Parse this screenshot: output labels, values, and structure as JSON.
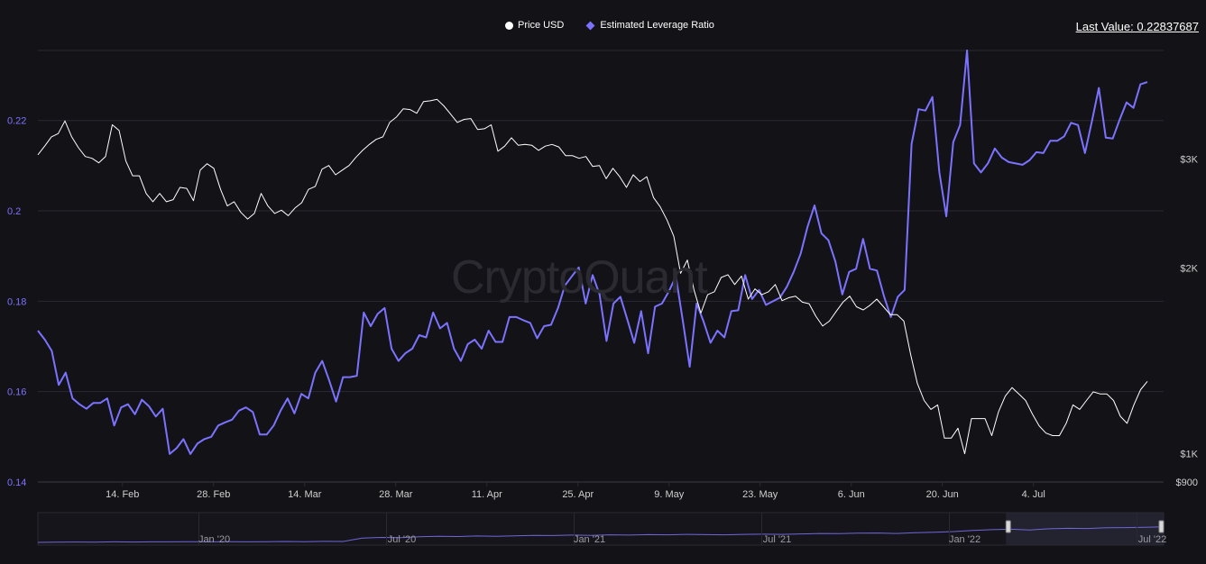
{
  "legend": {
    "price_label": "Price USD",
    "leverage_label": "Estimated Leverage Ratio"
  },
  "last_value": "Last Value: 0.22837687",
  "watermark": "CryptoQuant",
  "colors": {
    "background": "#131217",
    "grid": "#2a2932",
    "price": "#ffffff",
    "leverage": "#7b73ff",
    "left_axis_text": "#7b73ff",
    "right_axis_text": "#cfcfcf",
    "x_axis_text": "#cfcfcf"
  },
  "chart_data": {
    "type": "line",
    "x_start": "2022-02-01",
    "x_end": "2022-07-24",
    "x_tick_labels": [
      "14. Feb",
      "28. Feb",
      "14. Mar",
      "28. Mar",
      "11. Apr",
      "25. Apr",
      "9. May",
      "23. May",
      "6. Jun",
      "20. Jun",
      "4. Jul"
    ],
    "left_axis": {
      "series": "Estimated Leverage Ratio",
      "ticks": [
        0.14,
        0.16,
        0.18,
        0.2,
        0.22
      ],
      "tick_labels": [
        "0.14",
        "0.16",
        "0.18",
        "0.2",
        "0.22"
      ],
      "range": [
        0.14,
        0.2355
      ]
    },
    "right_axis": {
      "series": "Price USD",
      "scale": "log",
      "ticks": [
        900,
        1000,
        2000,
        3000
      ],
      "tick_labels": [
        "$900",
        "$1K",
        "$2K",
        "$3K"
      ],
      "range": [
        900,
        4500
      ]
    },
    "grid": true,
    "legend_position": "top-center",
    "series": [
      {
        "name": "Estimated Leverage Ratio",
        "axis": "left",
        "values": [
          0.1735,
          0.1715,
          0.169,
          0.1615,
          0.1642,
          0.1585,
          0.1572,
          0.1562,
          0.1575,
          0.1575,
          0.1585,
          0.1525,
          0.1565,
          0.1572,
          0.155,
          0.1582,
          0.1568,
          0.1545,
          0.1562,
          0.1462,
          0.1475,
          0.1495,
          0.1462,
          0.1485,
          0.1495,
          0.15,
          0.1525,
          0.1532,
          0.1538,
          0.1558,
          0.1565,
          0.1555,
          0.1505,
          0.1505,
          0.1525,
          0.1558,
          0.1585,
          0.1552,
          0.1595,
          0.1585,
          0.1642,
          0.1668,
          0.1625,
          0.1578,
          0.1632,
          0.1632,
          0.1635,
          0.1775,
          0.1745,
          0.1772,
          0.1785,
          0.1695,
          0.1668,
          0.1685,
          0.1695,
          0.1725,
          0.172,
          0.1775,
          0.174,
          0.1752,
          0.1695,
          0.1668,
          0.1705,
          0.1715,
          0.1695,
          0.1735,
          0.171,
          0.171,
          0.1765,
          0.1765,
          0.1758,
          0.1752,
          0.1718,
          0.1745,
          0.1748,
          0.1785,
          0.1835,
          0.1855,
          0.1875,
          0.1795,
          0.1858,
          0.1815,
          0.1712,
          0.1795,
          0.181,
          0.176,
          0.1708,
          0.1778,
          0.1685,
          0.1788,
          0.1795,
          0.1822,
          0.1855,
          0.1758,
          0.1655,
          0.1795,
          0.1755,
          0.1708,
          0.1735,
          0.172,
          0.1778,
          0.178,
          0.1858,
          0.1805,
          0.1825,
          0.1792,
          0.18,
          0.1808,
          0.1832,
          0.1865,
          0.1905,
          0.1965,
          0.2012,
          0.195,
          0.1935,
          0.1888,
          0.1815,
          0.1865,
          0.1872,
          0.1938,
          0.1872,
          0.1868,
          0.1812,
          0.1765,
          0.181,
          0.1825,
          0.2148,
          0.2225,
          0.2222,
          0.2252,
          0.2085,
          0.1988,
          0.2152,
          0.219,
          0.2355,
          0.2105,
          0.2085,
          0.2105,
          0.2138,
          0.2118,
          0.2108,
          0.2105,
          0.2102,
          0.2112,
          0.213,
          0.2128,
          0.2155,
          0.2155,
          0.2165,
          0.2195,
          0.219,
          0.2128,
          0.2198,
          0.2272,
          0.2162,
          0.216,
          0.2202,
          0.224,
          0.2228,
          0.228,
          0.2285
        ]
      },
      {
        "name": "Price USD",
        "axis": "right",
        "values": [
          3050,
          3150,
          3260,
          3300,
          3460,
          3260,
          3130,
          3030,
          3010,
          2960,
          3030,
          3410,
          3340,
          2980,
          2820,
          2820,
          2640,
          2560,
          2640,
          2560,
          2580,
          2700,
          2690,
          2570,
          2880,
          2950,
          2900,
          2680,
          2520,
          2560,
          2460,
          2400,
          2450,
          2640,
          2520,
          2450,
          2480,
          2430,
          2500,
          2550,
          2680,
          2710,
          2890,
          2930,
          2830,
          2880,
          2930,
          3020,
          3100,
          3170,
          3230,
          3260,
          3440,
          3510,
          3620,
          3610,
          3560,
          3720,
          3730,
          3750,
          3660,
          3550,
          3440,
          3480,
          3490,
          3350,
          3360,
          3410,
          3090,
          3150,
          3250,
          3160,
          3170,
          3160,
          3100,
          3150,
          3170,
          3140,
          3040,
          3040,
          3010,
          3030,
          2920,
          2930,
          2790,
          2900,
          2810,
          2700,
          2830,
          2760,
          2810,
          2600,
          2510,
          2390,
          2250,
          1960,
          2060,
          1840,
          1690,
          1810,
          1830,
          1930,
          1950,
          1880,
          1940,
          1780,
          1850,
          1810,
          1830,
          1880,
          1770,
          1790,
          1800,
          1760,
          1750,
          1670,
          1610,
          1640,
          1700,
          1760,
          1800,
          1730,
          1710,
          1740,
          1780,
          1730,
          1680,
          1680,
          1640,
          1450,
          1300,
          1220,
          1180,
          1200,
          1060,
          1060,
          1100,
          1000,
          1140,
          1140,
          1140,
          1070,
          1170,
          1240,
          1280,
          1250,
          1220,
          1160,
          1110,
          1080,
          1070,
          1070,
          1120,
          1200,
          1180,
          1220,
          1260,
          1250,
          1250,
          1220,
          1150,
          1120,
          1200,
          1270,
          1310
        ]
      }
    ],
    "navigator": {
      "tick_labels": [
        "Jan '20",
        "Jul '20",
        "Jan '21",
        "Jul '21",
        "Jan '22",
        "Jul '22"
      ],
      "series": [
        0.04,
        0.05,
        0.055,
        0.05,
        0.06,
        0.055,
        0.06,
        0.06,
        0.065,
        0.06,
        0.07,
        0.06,
        0.065,
        0.075,
        0.07,
        0.08,
        0.075,
        0.22,
        0.25,
        0.24,
        0.28,
        0.3,
        0.29,
        0.31,
        0.3,
        0.32,
        0.34,
        0.33,
        0.35,
        0.34,
        0.36,
        0.35,
        0.37,
        0.36,
        0.38,
        0.37,
        0.36,
        0.38,
        0.39,
        0.38,
        0.4,
        0.42,
        0.41,
        0.43,
        0.44,
        0.42,
        0.45,
        0.47,
        0.5,
        0.55,
        0.58,
        0.6,
        0.57,
        0.62,
        0.64,
        0.63,
        0.66,
        0.67,
        0.68,
        0.7
      ],
      "window_start_fraction": 0.86,
      "window_end_fraction": 1.0
    }
  }
}
